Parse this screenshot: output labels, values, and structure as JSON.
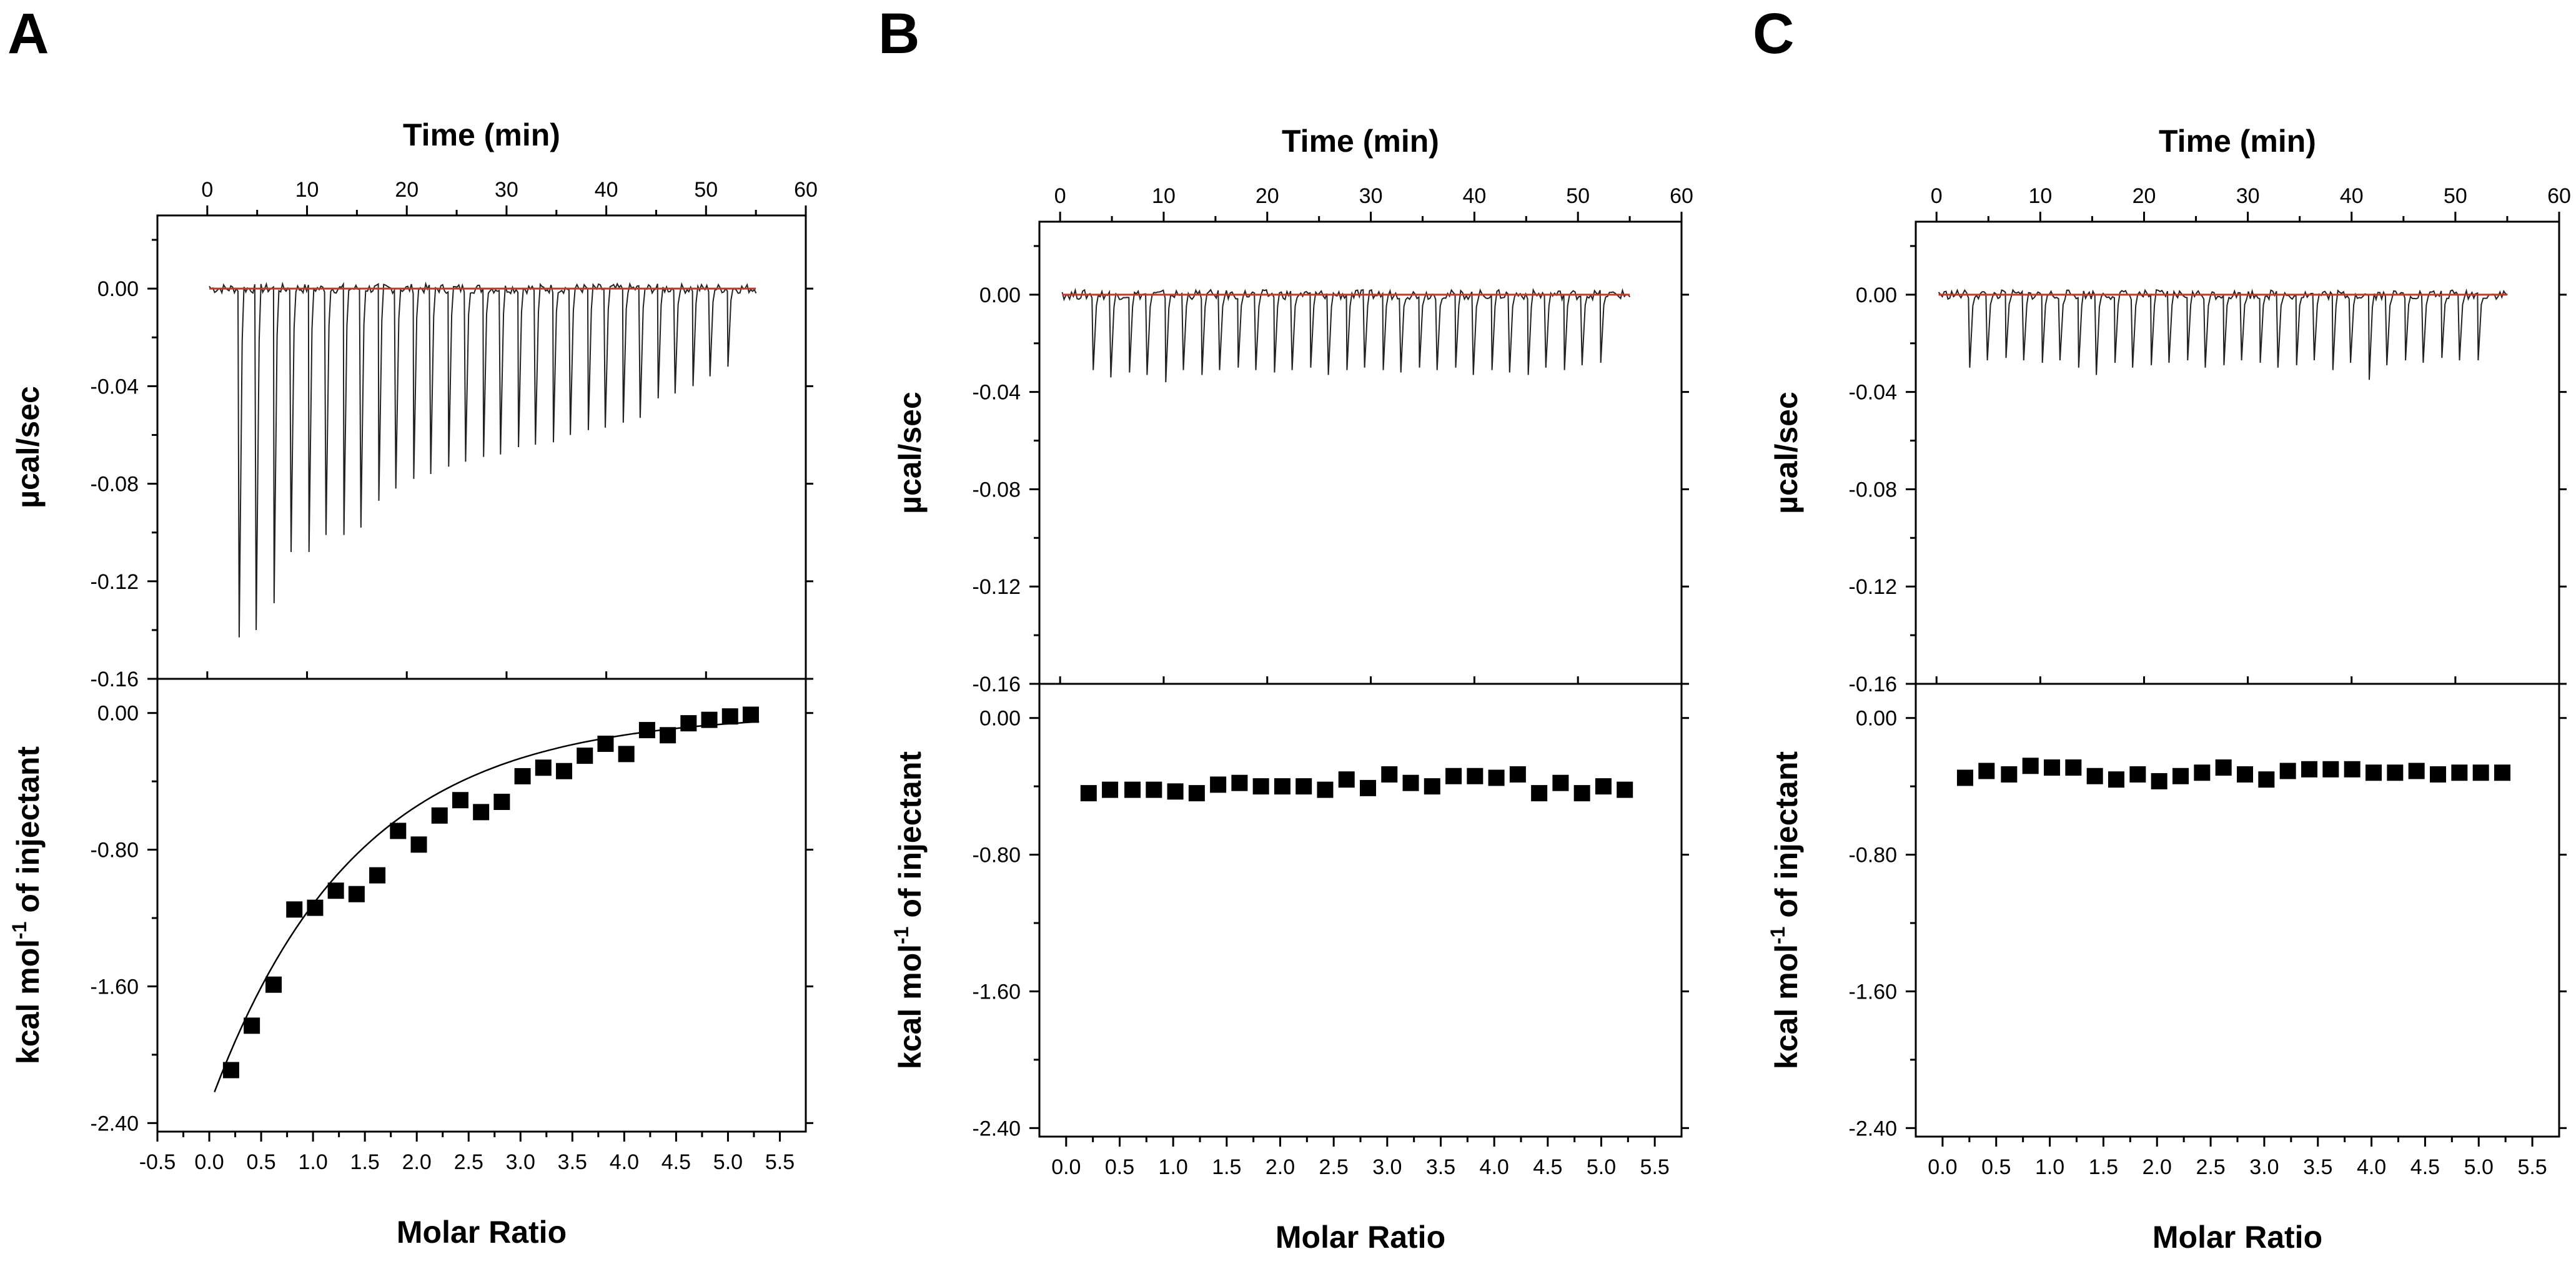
{
  "chart_data": [
    {
      "panel": "A",
      "type": "line",
      "thermogram": {
        "xlabel": "Time (min)",
        "ylabel": "µcal/sec",
        "xlim": [
          -5,
          60
        ],
        "ylim": [
          -0.16,
          0.03
        ],
        "xticks": [
          "0",
          "10",
          "20",
          "30",
          "40",
          "50",
          "60"
        ],
        "yticks": [
          "0.00",
          "-0.04",
          "-0.08",
          "-0.12",
          "-0.16"
        ],
        "baseline_value": 0.0,
        "injection_times": [
          3.2,
          4.9,
          6.7,
          8.4,
          10.2,
          11.9,
          13.7,
          15.4,
          17.2,
          18.9,
          20.7,
          22.4,
          24.2,
          25.9,
          27.7,
          29.4,
          31.2,
          32.9,
          34.7,
          36.4,
          38.2,
          39.9,
          41.7,
          43.4,
          45.2,
          46.9,
          48.7,
          50.4,
          52.2
        ],
        "peak_values": [
          -0.143,
          -0.14,
          -0.129,
          -0.108,
          -0.108,
          -0.101,
          -0.101,
          -0.098,
          -0.087,
          -0.082,
          -0.078,
          -0.076,
          -0.073,
          -0.071,
          -0.069,
          -0.068,
          -0.065,
          -0.064,
          -0.063,
          -0.06,
          -0.058,
          -0.057,
          -0.055,
          -0.053,
          -0.045,
          -0.043,
          -0.04,
          -0.036,
          -0.032
        ]
      },
      "isotherm": {
        "xlabel": "Molar Ratio",
        "ylabel": "kcal mol",
        "ylabel_sup": "-1",
        "ylabel_tail": " of injectant",
        "xlim": [
          -0.5,
          5.75
        ],
        "ylim": [
          -2.45,
          0.2
        ],
        "xticks": [
          "-0.5",
          "0.0",
          "0.5",
          "1.0",
          "1.5",
          "2.0",
          "2.5",
          "3.0",
          "3.5",
          "4.0",
          "4.5",
          "5.0",
          "5.5"
        ],
        "yticks": [
          "0.00",
          "-0.80",
          "-1.60",
          "-2.40"
        ],
        "x": [
          0.21,
          0.41,
          0.62,
          0.82,
          1.02,
          1.22,
          1.42,
          1.62,
          1.82,
          2.02,
          2.22,
          2.42,
          2.62,
          2.82,
          3.02,
          3.22,
          3.42,
          3.62,
          3.82,
          4.02,
          4.22,
          4.42,
          4.62,
          4.82,
          5.02,
          5.22
        ],
        "y": [
          -2.09,
          -1.83,
          -1.59,
          -1.15,
          -1.14,
          -1.04,
          -1.06,
          -0.95,
          -0.69,
          -0.77,
          -0.6,
          -0.51,
          -0.58,
          -0.52,
          -0.37,
          -0.32,
          -0.34,
          -0.25,
          -0.18,
          -0.24,
          -0.1,
          -0.13,
          -0.06,
          -0.04,
          -0.02,
          -0.01
        ],
        "fit": {
          "a": -2.3,
          "k": 0.72,
          "x_range": [
            0.05,
            5.3
          ]
        }
      }
    },
    {
      "panel": "B",
      "type": "line",
      "thermogram": {
        "xlabel": "Time (min)",
        "ylabel": "µcal/sec",
        "xlim": [
          -2,
          60
        ],
        "ylim": [
          -0.16,
          0.03
        ],
        "xticks": [
          "0",
          "10",
          "20",
          "30",
          "40",
          "50",
          "60"
        ],
        "yticks": [
          "0.00",
          "-0.04",
          "-0.08",
          "-0.12",
          "-0.16"
        ],
        "baseline_value": 0.0,
        "injection_times": [
          3.2,
          4.9,
          6.7,
          8.4,
          10.2,
          11.9,
          13.7,
          15.4,
          17.2,
          18.9,
          20.7,
          22.4,
          24.2,
          25.9,
          27.7,
          29.4,
          31.2,
          32.9,
          34.7,
          36.4,
          38.2,
          39.9,
          41.7,
          43.4,
          45.2,
          46.9,
          48.7,
          50.4,
          52.2
        ],
        "peak_values": [
          -0.031,
          -0.034,
          -0.032,
          -0.033,
          -0.036,
          -0.031,
          -0.033,
          -0.031,
          -0.03,
          -0.031,
          -0.032,
          -0.031,
          -0.03,
          -0.033,
          -0.031,
          -0.03,
          -0.031,
          -0.032,
          -0.03,
          -0.031,
          -0.03,
          -0.033,
          -0.031,
          -0.032,
          -0.033,
          -0.03,
          -0.031,
          -0.029,
          -0.028
        ]
      },
      "isotherm": {
        "xlabel": "Molar Ratio",
        "ylabel": "kcal mol",
        "ylabel_sup": "-1",
        "ylabel_tail": " of injectant",
        "xlim": [
          -0.25,
          5.75
        ],
        "ylim": [
          -2.45,
          0.2
        ],
        "xticks": [
          "0.0",
          "0.5",
          "1.0",
          "1.5",
          "2.0",
          "2.5",
          "3.0",
          "3.5",
          "4.0",
          "4.5",
          "5.0",
          "5.5"
        ],
        "yticks": [
          "0.00",
          "-0.80",
          "-1.60",
          "-2.40"
        ],
        "x": [
          0.21,
          0.41,
          0.62,
          0.82,
          1.02,
          1.22,
          1.42,
          1.62,
          1.82,
          2.02,
          2.22,
          2.42,
          2.62,
          2.82,
          3.02,
          3.22,
          3.42,
          3.62,
          3.82,
          4.02,
          4.22,
          4.42,
          4.62,
          4.82,
          5.02,
          5.22
        ],
        "y": [
          -0.44,
          -0.42,
          -0.42,
          -0.42,
          -0.43,
          -0.44,
          -0.39,
          -0.38,
          -0.4,
          -0.4,
          -0.4,
          -0.42,
          -0.36,
          -0.41,
          -0.33,
          -0.38,
          -0.4,
          -0.34,
          -0.34,
          -0.35,
          -0.33,
          -0.44,
          -0.38,
          -0.44,
          -0.4,
          -0.42
        ]
      }
    },
    {
      "panel": "C",
      "type": "line",
      "thermogram": {
        "xlabel": "Time (min)",
        "ylabel": "µcal/sec",
        "xlim": [
          -2,
          60
        ],
        "ylim": [
          -0.16,
          0.03
        ],
        "xticks": [
          "0",
          "10",
          "20",
          "30",
          "40",
          "50",
          "60"
        ],
        "yticks": [
          "0.00",
          "-0.04",
          "-0.08",
          "-0.12",
          "-0.16"
        ],
        "baseline_value": 0.0,
        "injection_times": [
          3.2,
          4.9,
          6.7,
          8.4,
          10.2,
          11.9,
          13.7,
          15.4,
          17.2,
          18.9,
          20.7,
          22.4,
          24.2,
          25.9,
          27.7,
          29.4,
          31.2,
          32.9,
          34.7,
          36.4,
          38.2,
          39.9,
          41.7,
          43.4,
          45.2,
          46.9,
          48.7,
          50.4,
          52.2
        ],
        "peak_values": [
          -0.03,
          -0.027,
          -0.026,
          -0.027,
          -0.028,
          -0.027,
          -0.03,
          -0.033,
          -0.028,
          -0.03,
          -0.029,
          -0.028,
          -0.027,
          -0.03,
          -0.029,
          -0.027,
          -0.028,
          -0.03,
          -0.029,
          -0.027,
          -0.031,
          -0.028,
          -0.035,
          -0.029,
          -0.027,
          -0.028,
          -0.026,
          -0.027,
          -0.027
        ]
      },
      "isotherm": {
        "xlabel": "Molar Ratio",
        "ylabel": "kcal mol",
        "ylabel_sup": "-1",
        "ylabel_tail": " of injectant",
        "xlim": [
          -0.25,
          5.75
        ],
        "ylim": [
          -2.45,
          0.2
        ],
        "xticks": [
          "0.0",
          "0.5",
          "1.0",
          "1.5",
          "2.0",
          "2.5",
          "3.0",
          "3.5",
          "4.0",
          "4.5",
          "5.0",
          "5.5"
        ],
        "yticks": [
          "0.00",
          "-0.80",
          "-1.60",
          "-2.40"
        ],
        "x": [
          0.21,
          0.41,
          0.62,
          0.82,
          1.02,
          1.22,
          1.42,
          1.62,
          1.82,
          2.02,
          2.22,
          2.42,
          2.62,
          2.82,
          3.02,
          3.22,
          3.42,
          3.62,
          3.82,
          4.02,
          4.22,
          4.42,
          4.62,
          4.82,
          5.02,
          5.22
        ],
        "y": [
          -0.35,
          -0.31,
          -0.33,
          -0.28,
          -0.29,
          -0.29,
          -0.34,
          -0.36,
          -0.33,
          -0.37,
          -0.34,
          -0.32,
          -0.29,
          -0.33,
          -0.36,
          -0.31,
          -0.3,
          -0.3,
          -0.3,
          -0.32,
          -0.32,
          -0.31,
          -0.33,
          -0.32,
          -0.32,
          -0.32
        ]
      }
    }
  ],
  "colors": {
    "baseline": "#c0392b",
    "trace": "#222222",
    "marker": "#000000"
  }
}
